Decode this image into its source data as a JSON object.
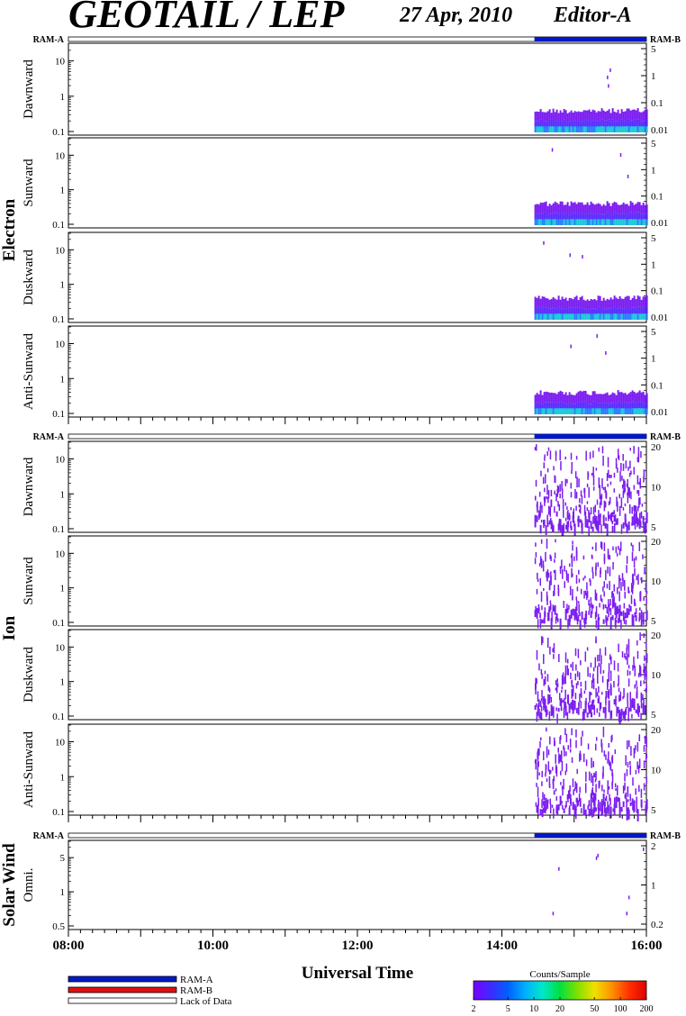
{
  "header": {
    "title": "GEOTAIL / LEP",
    "date": "27 Apr, 2010",
    "editor": "Editor-A"
  },
  "colors": {
    "ram_a": "#0018c8",
    "ram_b": "#e01010",
    "lack": "#ffffff",
    "blue_data": "#7b1df0",
    "cyan_data": "#18c8d8",
    "colorbar": [
      "#7a00ff",
      "#3d2bff",
      "#0060ff",
      "#00b0ff",
      "#00e8c8",
      "#00e040",
      "#80e000",
      "#f0e000",
      "#ff9000",
      "#ff3000",
      "#e00000"
    ]
  },
  "chart_data": {
    "type": "heatmap",
    "x_axis": {
      "label": "Universal Time",
      "ticks": [
        "08:00",
        "10:00",
        "12:00",
        "14:00",
        "16:00"
      ],
      "range_hours": [
        8,
        16
      ]
    },
    "ram_bar": {
      "left_label": "RAM-A",
      "right_label": "RAM-B",
      "ram_a_start_hour": 14.45,
      "ram_a_end_hour": 16.0
    },
    "data_interval_hours": [
      14.45,
      16.0
    ],
    "groups": [
      {
        "name": "Electron",
        "panels": [
          {
            "label": "Dawnward",
            "left_ticks": [
              "10",
              "1",
              "0.1"
            ],
            "right_ticks": [
              "5",
              "1",
              "0.1",
              "0.01"
            ],
            "pattern": "band"
          },
          {
            "label": "Sunward",
            "left_ticks": [
              "10",
              "1",
              "0.1"
            ],
            "right_ticks": [
              "5",
              "1",
              "0.1",
              "0.01"
            ],
            "pattern": "band"
          },
          {
            "label": "Duskward",
            "left_ticks": [
              "10",
              "1",
              "0.1"
            ],
            "right_ticks": [
              "5",
              "1",
              "0.1",
              "0.01"
            ],
            "pattern": "band"
          },
          {
            "label": "Anti-Sunward",
            "left_ticks": [
              "10",
              "1",
              "0.1"
            ],
            "right_ticks": [
              "5",
              "1",
              "0.1",
              "0.01"
            ],
            "pattern": "band"
          }
        ]
      },
      {
        "name": "Ion",
        "panels": [
          {
            "label": "Dawnward",
            "left_ticks": [
              "10",
              "1",
              "0.1"
            ],
            "right_ticks": [
              "20",
              "10",
              "5"
            ],
            "pattern": "scatter"
          },
          {
            "label": "Sunward",
            "left_ticks": [
              "10",
              "1",
              "0.1"
            ],
            "right_ticks": [
              "20",
              "10",
              "5"
            ],
            "pattern": "scatter"
          },
          {
            "label": "Duskward",
            "left_ticks": [
              "10",
              "1",
              "0.1"
            ],
            "right_ticks": [
              "20",
              "10",
              "5"
            ],
            "pattern": "scatter"
          },
          {
            "label": "Anti-Sunward",
            "left_ticks": [
              "10",
              "1",
              "0.1"
            ],
            "right_ticks": [
              "20",
              "10",
              "5"
            ],
            "pattern": "scatter"
          }
        ]
      },
      {
        "name": "Solar Wind",
        "panels": [
          {
            "label": "Omni.",
            "left_ticks": [
              "5",
              "1",
              "0.5"
            ],
            "right_ticks": [
              "2",
              "1",
              "0.2"
            ],
            "pattern": "sparse"
          }
        ]
      }
    ],
    "legend": {
      "ram_a": "RAM-A",
      "ram_b": "RAM-B",
      "lack": "Lack of Data"
    },
    "colorbar": {
      "title": "Counts/Sample",
      "ticks": [
        "2",
        "5",
        "10",
        "20",
        "50",
        "100",
        "200"
      ]
    }
  }
}
